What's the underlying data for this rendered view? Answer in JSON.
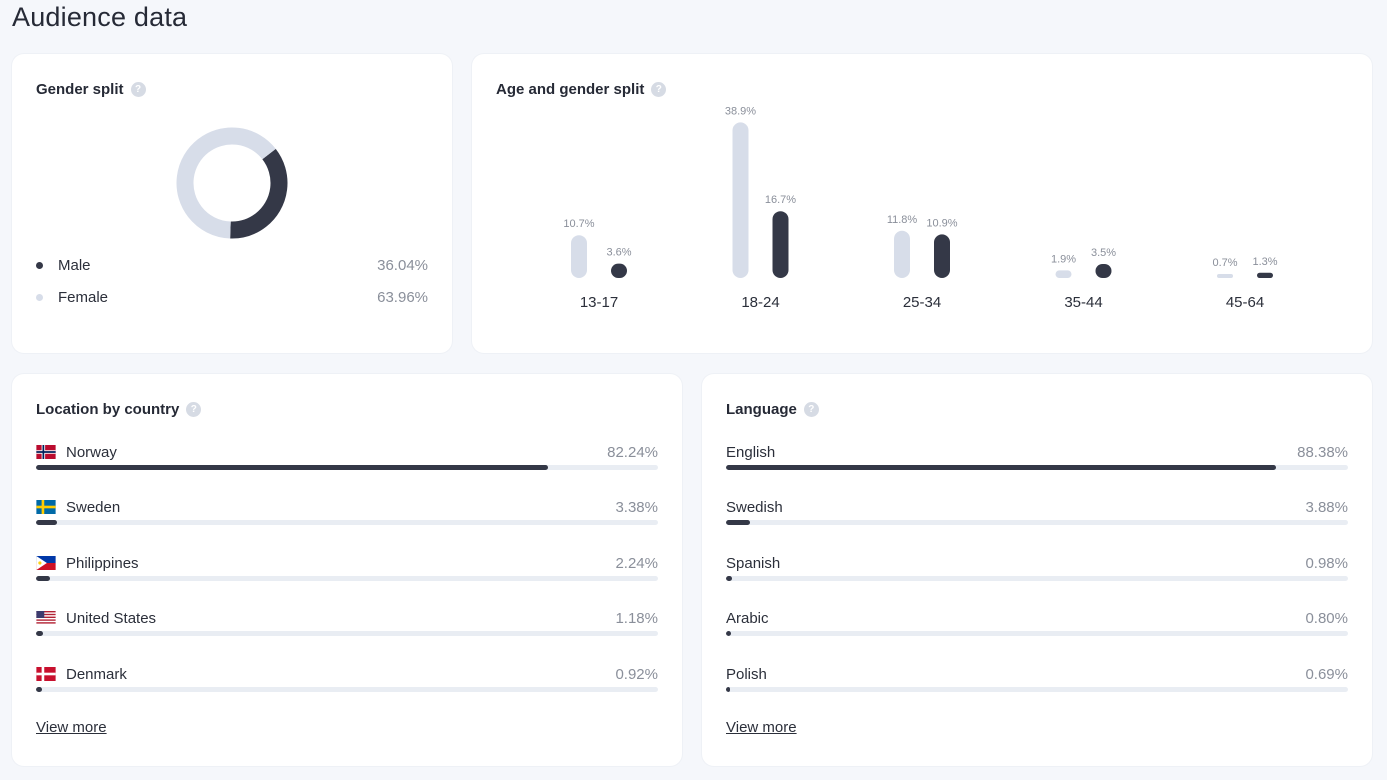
{
  "page": {
    "title": "Audience data"
  },
  "gender": {
    "title": "Gender split",
    "items": [
      {
        "label": "Male",
        "value": "36.04%",
        "pct": 36.04,
        "color": "#343847"
      },
      {
        "label": "Female",
        "value": "63.96%",
        "pct": 63.96,
        "color": "#d7dde9"
      }
    ]
  },
  "age": {
    "title": "Age and gender split",
    "colors": {
      "female": "#d7dde9",
      "male": "#343847"
    },
    "chart_data": {
      "type": "bar",
      "categories": [
        "13-17",
        "18-24",
        "25-34",
        "35-44",
        "45-64"
      ],
      "series": [
        {
          "values": [
            10.7,
            38.9,
            11.8,
            1.9,
            0.7
          ],
          "labels": [
            "10.7%",
            "38.9%",
            "11.8%",
            "1.9%",
            "0.7%"
          ]
        },
        {
          "values": [
            3.6,
            16.7,
            10.9,
            3.5,
            1.3
          ],
          "labels": [
            "3.6%",
            "16.7%",
            "10.9%",
            "3.5%",
            "1.3%"
          ]
        }
      ]
    }
  },
  "location": {
    "title": "Location by country",
    "items": [
      {
        "label": "Norway",
        "value": "82.24%",
        "pct": 82.24,
        "flag": "norway-flag-icon"
      },
      {
        "label": "Sweden",
        "value": "3.38%",
        "pct": 3.38,
        "flag": "sweden-flag-icon"
      },
      {
        "label": "Philippines",
        "value": "2.24%",
        "pct": 2.24,
        "flag": "philippines-flag-icon"
      },
      {
        "label": "United States",
        "value": "1.18%",
        "pct": 1.18,
        "flag": "usa-flag-icon"
      },
      {
        "label": "Denmark",
        "value": "0.92%",
        "pct": 0.92,
        "flag": "denmark-flag-icon"
      }
    ],
    "view_more": "View more"
  },
  "language": {
    "title": "Language",
    "items": [
      {
        "label": "English",
        "value": "88.38%",
        "pct": 88.38
      },
      {
        "label": "Swedish",
        "value": "3.88%",
        "pct": 3.88
      },
      {
        "label": "Spanish",
        "value": "0.98%",
        "pct": 0.98
      },
      {
        "label": "Arabic",
        "value": "0.80%",
        "pct": 0.8
      },
      {
        "label": "Polish",
        "value": "0.69%",
        "pct": 0.69
      }
    ],
    "view_more": "View more"
  }
}
